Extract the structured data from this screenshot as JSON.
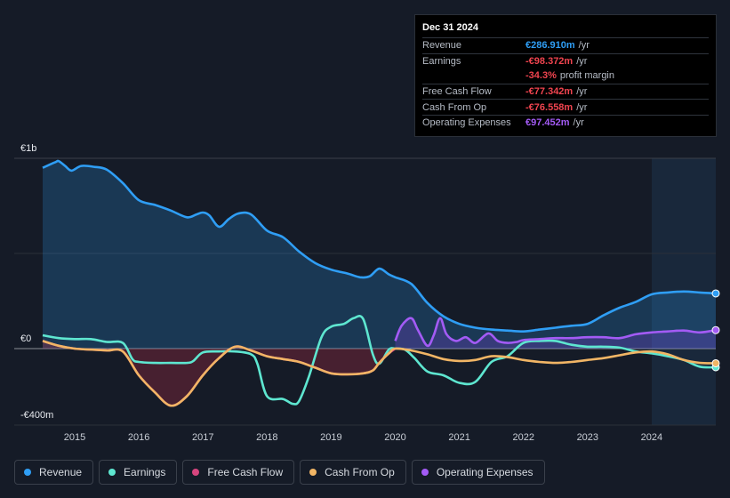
{
  "tooltip": {
    "date": "Dec 31 2024",
    "rows": [
      {
        "label": "Revenue",
        "value": "€286.910m",
        "unit": "/yr",
        "color": "#2f9ef5"
      },
      {
        "label": "Earnings",
        "value": "-€98.372m",
        "unit": "/yr",
        "color": "#f0444f"
      },
      {
        "label": "",
        "value": "-34.3%",
        "unit": "profit margin",
        "color": "#f0444f"
      },
      {
        "label": "Free Cash Flow",
        "value": "-€77.342m",
        "unit": "/yr",
        "color": "#f0444f"
      },
      {
        "label": "Cash From Op",
        "value": "-€76.558m",
        "unit": "/yr",
        "color": "#f0444f"
      },
      {
        "label": "Operating Expenses",
        "value": "€97.452m",
        "unit": "/yr",
        "color": "#a35bf5"
      }
    ]
  },
  "legend": [
    {
      "label": "Revenue",
      "color": "#2f9ef5"
    },
    {
      "label": "Earnings",
      "color": "#5ee6d0"
    },
    {
      "label": "Free Cash Flow",
      "color": "#d6457e"
    },
    {
      "label": "Cash From Op",
      "color": "#f1b565"
    },
    {
      "label": "Operating Expenses",
      "color": "#a35bf5"
    }
  ],
  "chart_data": {
    "type": "line",
    "title": "",
    "y_unit": "€m",
    "ylim": [
      -400,
      1000
    ],
    "xlim": [
      2014.5,
      2025.0
    ],
    "forecast_start": 2024.0,
    "y_tick_labels": [
      {
        "value": 1000,
        "label": "€1b"
      },
      {
        "value": 0,
        "label": "€0"
      },
      {
        "value": -400,
        "label": "-€400m"
      }
    ],
    "x_tick_labels": [
      "2015",
      "2016",
      "2017",
      "2018",
      "2019",
      "2020",
      "2021",
      "2022",
      "2023",
      "2024"
    ],
    "x_tick_values": [
      2015,
      2016,
      2017,
      2018,
      2019,
      2020,
      2021,
      2022,
      2023,
      2024
    ],
    "series": [
      {
        "name": "Revenue",
        "color": "#2f9ef5",
        "fill": "rgba(47,158,245,0.22)",
        "x": [
          2014.5,
          2014.7,
          2014.75,
          2014.85,
          2014.95,
          2015.1,
          2015.3,
          2015.5,
          2015.75,
          2016.0,
          2016.25,
          2016.5,
          2016.75,
          2016.9,
          2017.0,
          2017.1,
          2017.25,
          2017.4,
          2017.55,
          2017.75,
          2018.0,
          2018.25,
          2018.5,
          2018.75,
          2019.0,
          2019.25,
          2019.45,
          2019.6,
          2019.75,
          2019.9,
          2020.0,
          2020.25,
          2020.5,
          2020.75,
          2021.0,
          2021.25,
          2021.5,
          2021.75,
          2022.0,
          2022.25,
          2022.5,
          2022.75,
          2023.0,
          2023.25,
          2023.5,
          2023.75,
          2024.0,
          2024.25,
          2024.5,
          2024.75,
          2025.0
        ],
        "y": [
          950,
          980,
          985,
          960,
          935,
          960,
          955,
          940,
          870,
          780,
          755,
          725,
          690,
          705,
          715,
          700,
          640,
          680,
          710,
          705,
          620,
          585,
          510,
          450,
          415,
          395,
          375,
          380,
          420,
          390,
          375,
          340,
          240,
          170,
          130,
          110,
          100,
          95,
          90,
          100,
          110,
          120,
          130,
          175,
          215,
          245,
          285,
          295,
          300,
          295,
          290
        ]
      },
      {
        "name": "Earnings",
        "color": "#5ee6d0",
        "x": [
          2014.5,
          2014.75,
          2015.0,
          2015.25,
          2015.5,
          2015.75,
          2015.9,
          2016.0,
          2016.25,
          2016.5,
          2016.75,
          2016.85,
          2017.0,
          2017.25,
          2017.5,
          2017.75,
          2017.85,
          2018.0,
          2018.25,
          2018.4,
          2018.5,
          2018.65,
          2018.85,
          2019.0,
          2019.2,
          2019.35,
          2019.5,
          2019.65,
          2019.75,
          2019.9,
          2020.0,
          2020.15,
          2020.3,
          2020.5,
          2020.75,
          2021.0,
          2021.25,
          2021.5,
          2021.75,
          2022.0,
          2022.25,
          2022.5,
          2022.75,
          2023.0,
          2023.25,
          2023.5,
          2023.75,
          2024.0,
          2024.25,
          2024.5,
          2024.75,
          2025.0
        ],
        "y": [
          70,
          55,
          50,
          50,
          35,
          30,
          -55,
          -70,
          -75,
          -75,
          -75,
          -65,
          -20,
          -15,
          -15,
          -30,
          -80,
          -250,
          -265,
          -290,
          -275,
          -150,
          60,
          115,
          130,
          160,
          155,
          -30,
          -80,
          -5,
          0,
          -5,
          -50,
          -120,
          -140,
          -180,
          -175,
          -70,
          -40,
          30,
          40,
          40,
          20,
          10,
          10,
          5,
          -15,
          -25,
          -40,
          -60,
          -95,
          -98
        ]
      },
      {
        "name": "Free Cash Flow",
        "color": "#d6457e",
        "fill": "rgba(190,45,70,0.30)",
        "x": [
          2014.5,
          2014.75,
          2015.0,
          2015.25,
          2015.5,
          2015.75,
          2016.0,
          2016.25,
          2016.5,
          2016.75,
          2017.0,
          2017.25,
          2017.5,
          2017.75,
          2018.0,
          2018.25,
          2018.5,
          2018.75,
          2019.0,
          2019.25,
          2019.5,
          2019.65,
          2019.75,
          2019.9,
          2020.0
        ],
        "y": [
          40,
          15,
          0,
          -5,
          -10,
          -15,
          -140,
          -230,
          -300,
          -250,
          -140,
          -50,
          10,
          -10,
          -40,
          -55,
          -70,
          -100,
          -130,
          -135,
          -130,
          -115,
          -75,
          -25,
          0
        ]
      },
      {
        "name": "Cash From Op",
        "color": "#f1b565",
        "x": [
          2014.5,
          2014.75,
          2015.0,
          2015.25,
          2015.5,
          2015.75,
          2016.0,
          2016.25,
          2016.5,
          2016.75,
          2017.0,
          2017.25,
          2017.5,
          2017.75,
          2018.0,
          2018.25,
          2018.5,
          2018.75,
          2019.0,
          2019.25,
          2019.5,
          2019.65,
          2019.75,
          2019.9,
          2020.0,
          2020.25,
          2020.5,
          2020.75,
          2021.0,
          2021.25,
          2021.5,
          2021.75,
          2022.0,
          2022.25,
          2022.5,
          2022.75,
          2023.0,
          2023.25,
          2023.5,
          2023.75,
          2024.0,
          2024.25,
          2024.5,
          2024.75,
          2025.0
        ],
        "y": [
          40,
          15,
          0,
          -5,
          -10,
          -15,
          -140,
          -230,
          -300,
          -250,
          -140,
          -50,
          10,
          -10,
          -40,
          -55,
          -70,
          -100,
          -130,
          -135,
          -130,
          -115,
          -75,
          -25,
          0,
          -10,
          -30,
          -55,
          -65,
          -60,
          -40,
          -45,
          -60,
          -70,
          -75,
          -70,
          -60,
          -50,
          -35,
          -20,
          -15,
          -30,
          -60,
          -75,
          -77
        ]
      },
      {
        "name": "Operating Expenses",
        "color": "#a35bf5",
        "fill": "rgba(130,70,220,0.28)",
        "x": [
          2020.0,
          2020.1,
          2020.25,
          2020.35,
          2020.5,
          2020.6,
          2020.7,
          2020.8,
          2020.95,
          2021.1,
          2021.25,
          2021.45,
          2021.6,
          2021.75,
          2021.9,
          2022.0,
          2022.25,
          2022.5,
          2022.75,
          2023.0,
          2023.25,
          2023.5,
          2023.75,
          2024.0,
          2024.25,
          2024.5,
          2024.75,
          2025.0
        ],
        "y": [
          40,
          120,
          160,
          100,
          15,
          70,
          160,
          75,
          40,
          60,
          30,
          80,
          40,
          30,
          35,
          45,
          50,
          55,
          55,
          60,
          60,
          55,
          75,
          85,
          90,
          95,
          85,
          97
        ]
      }
    ]
  }
}
